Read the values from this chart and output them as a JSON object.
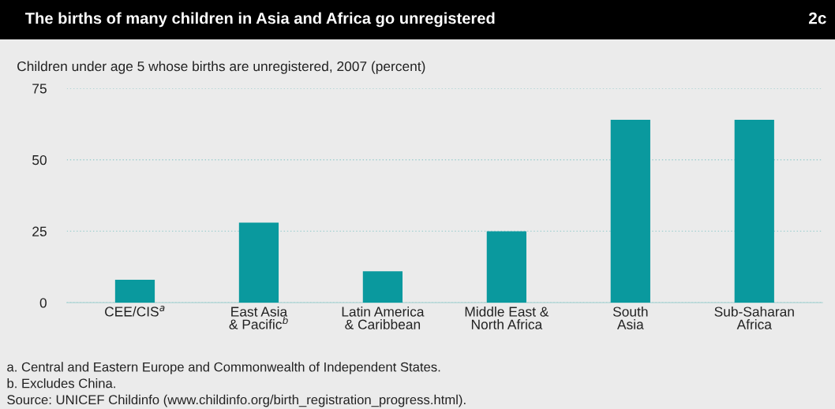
{
  "chart_data": {
    "type": "bar",
    "title": "The births of many children in Asia and Africa go unregistered",
    "subtitle": "Children under age 5 whose births are unregistered, 2007 (percent)",
    "categories": [
      "CEE/CIS$^{a}$",
      "East Asia\n& Pacific$^{b}$",
      "Latin America\n& Caribbean",
      "Middle East &\nNorth Africa",
      "South\nAsia",
      "Sub-Saharan\nAfrica"
    ],
    "values": [
      8,
      28,
      11,
      25,
      64,
      64
    ],
    "color": "#0a999e",
    "ylim": [
      0,
      75
    ],
    "yticks": [
      0,
      25,
      50,
      75
    ],
    "grid": "y",
    "annotations": [
      "2c",
      "a. Central and Eastern Europe and Commonwealth of Independent States.",
      "b. Excludes China.",
      "Source: UNICEF Childinfo (www.childinfo.org/birth_registration_progress.html)."
    ]
  }
}
